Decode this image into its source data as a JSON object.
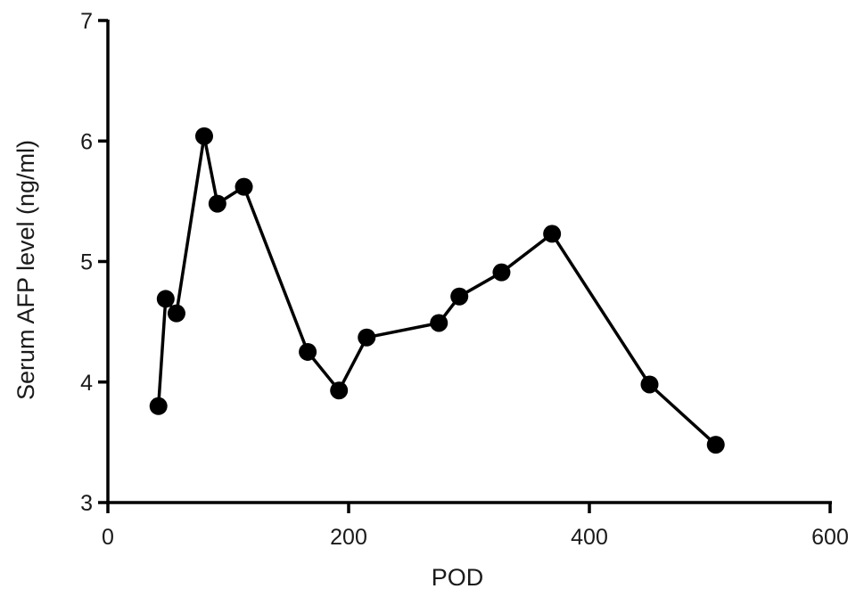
{
  "chart_data": {
    "type": "line",
    "xlabel": "POD",
    "ylabel": "Serum AFP level (ng/ml)",
    "xlim": [
      0,
      600
    ],
    "ylim": [
      3,
      7
    ],
    "xticks": [
      0,
      200,
      400,
      600
    ],
    "yticks": [
      3,
      4,
      5,
      6,
      7
    ],
    "xtick_labels": [
      "0",
      "200",
      "400",
      "600"
    ],
    "ytick_labels": [
      "3",
      "4",
      "5",
      "6",
      "7"
    ],
    "grid": false,
    "series": [
      {
        "color": "#000000",
        "marker": "circle",
        "x": [
          42,
          48,
          57,
          80,
          91,
          113,
          166,
          192,
          215,
          275,
          292,
          327,
          369,
          450,
          505
        ],
        "y": [
          3.8,
          4.69,
          4.57,
          6.04,
          5.48,
          5.62,
          4.25,
          3.93,
          4.37,
          4.49,
          4.71,
          4.91,
          5.23,
          3.98,
          3.48
        ]
      }
    ]
  }
}
